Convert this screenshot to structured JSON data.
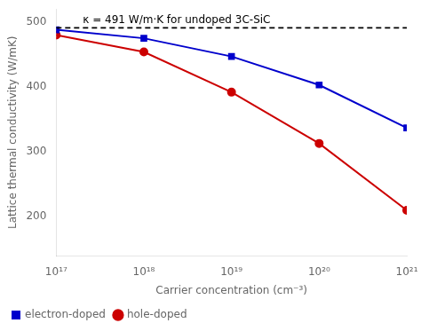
{
  "chart_data": {
    "type": "line",
    "x_label": "Carrier concentration (cm⁻³)",
    "y_label": "Lattice thermal conductivity (W/mK)",
    "x": [
      1e+17,
      1e+18,
      1e+19,
      1e+20,
      1e+21
    ],
    "series": [
      {
        "name": "electron-doped",
        "color": "#0000cc",
        "marker": "square",
        "values": [
          488,
          475,
          447,
          403,
          337
        ]
      },
      {
        "name": "hole-doped",
        "color": "#cc0000",
        "marker": "circle",
        "values": [
          480,
          454,
          392,
          313,
          210
        ]
      }
    ],
    "annotations": [
      {
        "text": "κ = 491 W/m·K for undoped 3C-SiC",
        "y": 491,
        "color": "#000000",
        "line_style": "dashed"
      }
    ],
    "log": "x",
    "xlim": [
      1e+17,
      1e+21
    ],
    "xticks": [
      {
        "value": 1e+17,
        "label": "10¹⁷"
      },
      {
        "value": 1e+18,
        "label": "10¹⁸"
      },
      {
        "value": 1e+19,
        "label": "10¹⁹"
      },
      {
        "value": 1e+20,
        "label": "10²⁰"
      },
      {
        "value": 1e+21,
        "label": "10²¹"
      }
    ],
    "ylim": [
      140,
      520
    ],
    "yticks": [
      200,
      300,
      400,
      500
    ],
    "grid": false,
    "legend": "lower left"
  }
}
